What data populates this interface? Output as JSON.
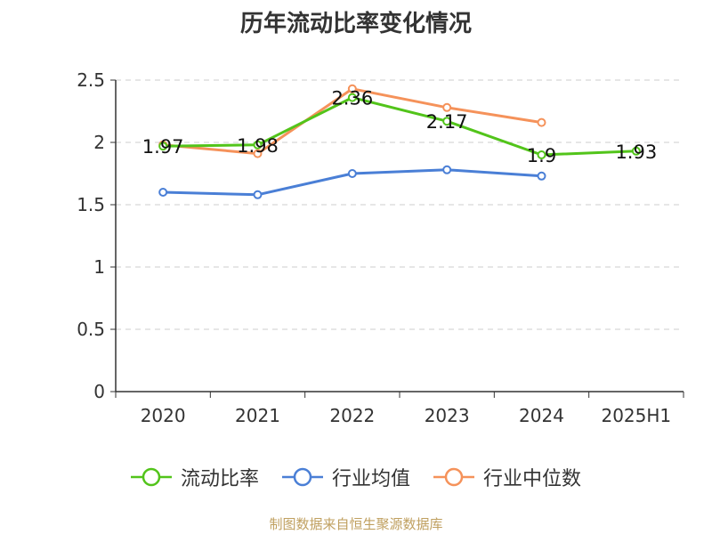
{
  "chart_data": {
    "type": "line",
    "title": "历年流动比率变化情况",
    "xlabel": "",
    "ylabel": "",
    "categories": [
      "2020",
      "2021",
      "2022",
      "2023",
      "2024",
      "2025H1"
    ],
    "ylim": [
      0,
      2.5
    ],
    "yticks": [
      "0",
      "0.5",
      "1",
      "1.5",
      "2",
      "2.5"
    ],
    "grid": true,
    "legend_position": "bottom",
    "series": [
      {
        "name": "流动比率",
        "color": "#52c41a",
        "values": [
          1.97,
          1.98,
          2.36,
          2.17,
          1.9,
          1.93
        ],
        "labels": [
          "1.97",
          "1.98",
          "2.36",
          "2.17",
          "1.9",
          "1.93"
        ]
      },
      {
        "name": "行业均值",
        "color": "#4a7fd6",
        "values": [
          1.6,
          1.58,
          1.75,
          1.78,
          1.73,
          null
        ]
      },
      {
        "name": "行业中位数",
        "color": "#f5925a",
        "values": [
          1.98,
          1.91,
          2.43,
          2.28,
          2.16,
          null
        ]
      }
    ]
  },
  "footer": {
    "source": "制图数据来自恒生聚源数据库"
  }
}
